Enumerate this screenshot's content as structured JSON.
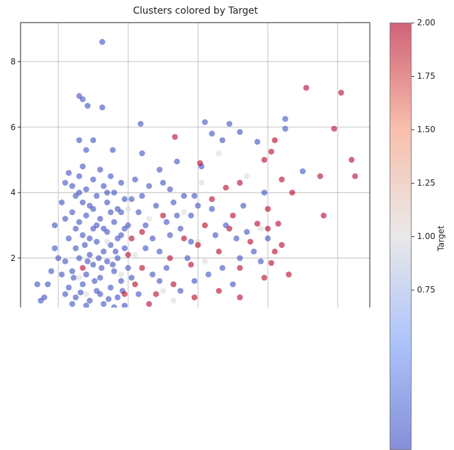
{
  "chart_data": {
    "type": "scatter",
    "title": "Clusters colored by Target",
    "xlabel": "",
    "ylabel": "",
    "xlim": [
      -0.54,
      4.46
    ],
    "ylim": [
      0.49,
      9.19
    ],
    "x_gridlines": [
      0,
      1,
      2,
      3,
      4
    ],
    "y_ticks": [
      2,
      4,
      6,
      8
    ],
    "y_tick_labels": [
      "2",
      "4",
      "6",
      "8"
    ],
    "grid": true,
    "colormap": "coolwarm",
    "color_stops": [
      "#3b4cc0",
      "#7b9ff9",
      "#dddcdc",
      "#f49a7b",
      "#b40426"
    ],
    "alpha": 0.6,
    "colorbar": {
      "label": "Target",
      "range": [
        0,
        2
      ],
      "ticks": [
        0.75,
        1.0,
        1.25,
        1.5,
        1.75,
        2.0
      ],
      "tick_labels": [
        "0.75",
        "1.00",
        "1.25",
        "1.50",
        "1.75",
        "2.00"
      ]
    },
    "points_xy_target": [
      [
        0.63,
        8.6,
        0
      ],
      [
        0.3,
        6.95,
        0
      ],
      [
        0.35,
        6.85,
        0
      ],
      [
        0.42,
        6.65,
        0
      ],
      [
        0.63,
        6.6,
        0
      ],
      [
        1.18,
        6.1,
        0
      ],
      [
        2.1,
        6.15,
        0
      ],
      [
        2.45,
        6.1,
        0
      ],
      [
        3.25,
        6.25,
        0
      ],
      [
        3.25,
        5.95,
        0
      ],
      [
        2.6,
        5.85,
        0
      ],
      [
        2.85,
        5.55,
        0
      ],
      [
        2.2,
        5.8,
        0
      ],
      [
        0.5,
        5.6,
        0
      ],
      [
        0.3,
        5.6,
        0
      ],
      [
        0.4,
        5.3,
        0
      ],
      [
        0.78,
        5.3,
        0
      ],
      [
        1.2,
        5.2,
        0
      ],
      [
        1.45,
        4.7,
        0
      ],
      [
        1.7,
        4.95,
        0
      ],
      [
        2.35,
        5.6,
        0
      ],
      [
        3.5,
        4.65,
        0
      ],
      [
        2.05,
        4.8,
        0
      ],
      [
        2.95,
        4.0,
        0
      ],
      [
        2.65,
        3.6,
        0
      ],
      [
        1.6,
        4.1,
        0
      ],
      [
        1.95,
        3.9,
        0
      ],
      [
        0.15,
        4.6,
        0
      ],
      [
        0.2,
        4.2,
        0
      ],
      [
        0.25,
        3.9,
        0
      ],
      [
        0.3,
        4.5,
        0
      ],
      [
        0.35,
        4.8,
        0
      ],
      [
        0.4,
        4.1,
        0
      ],
      [
        0.45,
        3.6,
        0
      ],
      [
        0.5,
        4.4,
        0
      ],
      [
        0.55,
        3.9,
        0
      ],
      [
        0.6,
        4.7,
        0
      ],
      [
        0.65,
        4.2,
        0
      ],
      [
        0.7,
        3.7,
        0
      ],
      [
        0.75,
        4.5,
        0
      ],
      [
        0.8,
        4.0,
        0
      ],
      [
        0.85,
        3.5,
        0
      ],
      [
        0.9,
        4.3,
        0
      ],
      [
        0.95,
        3.8,
        0
      ],
      [
        0.2,
        3.4,
        0
      ],
      [
        0.3,
        3.1,
        0
      ],
      [
        0.4,
        3.3,
        0
      ],
      [
        0.5,
        2.9,
        0
      ],
      [
        0.6,
        3.2,
        0
      ],
      [
        0.7,
        2.8,
        0
      ],
      [
        0.8,
        3.1,
        0
      ],
      [
        0.9,
        2.7,
        0
      ],
      [
        1.0,
        3.0,
        0
      ],
      [
        0.15,
        2.6,
        0
      ],
      [
        0.25,
        2.3,
        0
      ],
      [
        0.35,
        2.7,
        0
      ],
      [
        0.45,
        2.1,
        0
      ],
      [
        0.55,
        2.5,
        0
      ],
      [
        0.65,
        2.2,
        0
      ],
      [
        0.75,
        2.4,
        0
      ],
      [
        0.85,
        2.0,
        0
      ],
      [
        0.95,
        2.3,
        0
      ],
      [
        0.1,
        1.9,
        0
      ],
      [
        0.2,
        1.6,
        0
      ],
      [
        0.3,
        2.0,
        0
      ],
      [
        0.4,
        1.5,
        0
      ],
      [
        0.5,
        1.8,
        0
      ],
      [
        0.6,
        1.4,
        0
      ],
      [
        0.7,
        1.9,
        0
      ],
      [
        0.8,
        1.6,
        0
      ],
      [
        0.9,
        1.3,
        0
      ],
      [
        1.0,
        1.7,
        0
      ],
      [
        0.15,
        1.1,
        0
      ],
      [
        0.25,
        0.8,
        0
      ],
      [
        0.35,
        1.2,
        0
      ],
      [
        0.45,
        0.7,
        0
      ],
      [
        0.55,
        1.0,
        0
      ],
      [
        0.65,
        0.6,
        0
      ],
      [
        0.75,
        1.1,
        0
      ],
      [
        0.85,
        0.8,
        0
      ],
      [
        0.95,
        0.55,
        0
      ],
      [
        0.2,
        0.6,
        0
      ],
      [
        0.4,
        0.55,
        0
      ],
      [
        0.6,
        0.9,
        0
      ],
      [
        0.8,
        0.5,
        0
      ],
      [
        0.1,
        0.9,
        0
      ],
      [
        0.3,
        4.0,
        0
      ],
      [
        0.5,
        3.5,
        0
      ],
      [
        0.7,
        4.0,
        0
      ],
      [
        0.9,
        3.4,
        0
      ],
      [
        0.35,
        3.7,
        0
      ],
      [
        0.55,
        3.0,
        0
      ],
      [
        0.75,
        3.4,
        0
      ],
      [
        0.95,
        2.9,
        0
      ],
      [
        0.25,
        2.9,
        0
      ],
      [
        0.45,
        2.6,
        0
      ],
      [
        0.65,
        2.9,
        0
      ],
      [
        0.85,
        2.6,
        0
      ],
      [
        0.38,
        2.4,
        0
      ],
      [
        0.58,
        2.0,
        0
      ],
      [
        0.78,
        1.8,
        0
      ],
      [
        0.22,
        1.4,
        0
      ],
      [
        0.42,
        1.9,
        0
      ],
      [
        0.62,
        1.7,
        0
      ],
      [
        0.82,
        2.2,
        0
      ],
      [
        0.32,
        0.95,
        0
      ],
      [
        0.52,
        1.3,
        0
      ],
      [
        0.72,
        0.75,
        0
      ],
      [
        0.92,
        1.0,
        0
      ],
      [
        1.05,
        3.8,
        0
      ],
      [
        1.1,
        4.4,
        0
      ],
      [
        1.15,
        3.4,
        0
      ],
      [
        1.2,
        3.9,
        0
      ],
      [
        1.3,
        4.2,
        0
      ],
      [
        1.25,
        3.0,
        0
      ],
      [
        1.4,
        3.6,
        0
      ],
      [
        1.5,
        4.3,
        0
      ],
      [
        1.35,
        2.6,
        0
      ],
      [
        1.55,
        3.1,
        0
      ],
      [
        1.65,
        3.7,
        0
      ],
      [
        1.7,
        3.3,
        0
      ],
      [
        1.8,
        3.9,
        0
      ],
      [
        1.45,
        2.2,
        0
      ],
      [
        1.6,
        2.7,
        0
      ],
      [
        1.75,
        2.9,
        0
      ],
      [
        1.9,
        3.3,
        0
      ],
      [
        2.0,
        3.6,
        0
      ],
      [
        2.2,
        3.5,
        0
      ],
      [
        2.4,
        3.0,
        0
      ],
      [
        2.25,
        2.7,
        0
      ],
      [
        2.55,
        2.6,
        0
      ],
      [
        2.7,
        2.8,
        0
      ],
      [
        1.9,
        2.5,
        0
      ],
      [
        1.05,
        1.4,
        0
      ],
      [
        1.15,
        0.9,
        0
      ],
      [
        1.25,
        2.3,
        0
      ],
      [
        1.35,
        1.5,
        0
      ],
      [
        1.55,
        1.7,
        0
      ],
      [
        1.45,
        1.3,
        0
      ],
      [
        1.75,
        1.0,
        0
      ],
      [
        1.95,
        1.3,
        0
      ],
      [
        2.15,
        1.5,
        0
      ],
      [
        -0.15,
        1.2,
        0
      ],
      [
        -0.1,
        1.6,
        0
      ],
      [
        -0.2,
        0.8,
        0
      ],
      [
        -0.05,
        3.0,
        0
      ],
      [
        -0.05,
        2.3,
        0
      ],
      [
        -0.3,
        1.2,
        0
      ],
      [
        -0.25,
        0.7,
        0
      ],
      [
        0.05,
        1.5,
        0
      ],
      [
        0.0,
        2.0,
        0
      ],
      [
        0.05,
        3.7,
        0
      ],
      [
        0.1,
        4.3,
        0
      ],
      [
        0.1,
        3.2,
        0
      ],
      [
        2.6,
        2.0,
        0
      ],
      [
        2.8,
        2.2,
        0
      ],
      [
        2.5,
        1.2,
        0
      ],
      [
        2.9,
        1.9,
        0
      ],
      [
        3.0,
        2.6,
        0
      ],
      [
        2.35,
        1.7,
        0
      ],
      [
        1.85,
        2.0,
        0
      ],
      [
        2.3,
        5.2,
        1
      ],
      [
        2.05,
        4.3,
        1
      ],
      [
        2.7,
        4.5,
        1
      ],
      [
        2.0,
        2.5,
        1
      ],
      [
        1.3,
        3.2,
        1
      ],
      [
        1.1,
        2.1,
        1
      ],
      [
        0.9,
        1.5,
        1
      ],
      [
        1.5,
        1.0,
        1
      ],
      [
        2.1,
        1.9,
        1
      ],
      [
        0.4,
        0.9,
        1
      ],
      [
        0.3,
        1.4,
        1
      ],
      [
        1.8,
        3.4,
        1
      ],
      [
        1.65,
        0.7,
        1
      ],
      [
        2.9,
        2.9,
        1
      ],
      [
        0.7,
        2.5,
        1
      ],
      [
        1.0,
        3.5,
        1
      ],
      [
        1.67,
        5.7,
        2
      ],
      [
        2.03,
        4.9,
        2
      ],
      [
        3.55,
        7.2,
        2
      ],
      [
        4.05,
        7.05,
        2
      ],
      [
        3.95,
        5.95,
        2
      ],
      [
        4.2,
        5.0,
        2
      ],
      [
        4.25,
        4.5,
        2
      ],
      [
        3.75,
        4.5,
        2
      ],
      [
        3.8,
        3.3,
        2
      ],
      [
        3.05,
        5.25,
        2
      ],
      [
        2.95,
        5.0,
        2
      ],
      [
        3.1,
        5.6,
        2
      ],
      [
        3.2,
        4.4,
        2
      ],
      [
        3.35,
        4.0,
        2
      ],
      [
        2.6,
        4.3,
        2
      ],
      [
        2.4,
        4.15,
        2
      ],
      [
        2.2,
        3.8,
        2
      ],
      [
        2.5,
        3.3,
        2
      ],
      [
        3.0,
        3.5,
        2
      ],
      [
        2.85,
        3.05,
        2
      ],
      [
        3.15,
        3.05,
        2
      ],
      [
        3.2,
        2.4,
        2
      ],
      [
        3.3,
        1.5,
        2
      ],
      [
        3.05,
        1.85,
        2
      ],
      [
        2.95,
        1.4,
        2
      ],
      [
        2.0,
        2.4,
        2
      ],
      [
        1.8,
        2.6,
        2
      ],
      [
        1.5,
        3.3,
        2
      ],
      [
        1.6,
        2.0,
        2
      ],
      [
        1.2,
        1.7,
        2
      ],
      [
        1.0,
        2.1,
        2
      ],
      [
        1.05,
        2.6,
        2
      ],
      [
        1.2,
        2.8,
        2
      ],
      [
        2.3,
        1.0,
        2
      ],
      [
        2.6,
        0.8,
        2
      ],
      [
        1.4,
        0.9,
        2
      ],
      [
        1.65,
        1.2,
        2
      ],
      [
        1.9,
        1.8,
        2
      ],
      [
        2.1,
        3.0,
        2
      ],
      [
        2.3,
        2.2,
        2
      ],
      [
        2.6,
        1.7,
        2
      ],
      [
        2.75,
        2.5,
        2
      ],
      [
        3.0,
        2.9,
        2
      ],
      [
        1.1,
        1.2,
        2
      ],
      [
        1.3,
        0.6,
        2
      ],
      [
        0.95,
        0.9,
        2
      ],
      [
        1.95,
        0.8,
        2
      ],
      [
        2.45,
        2.9,
        2
      ],
      [
        3.1,
        2.2,
        2
      ],
      [
        0.35,
        1.7,
        2
      ]
    ]
  }
}
